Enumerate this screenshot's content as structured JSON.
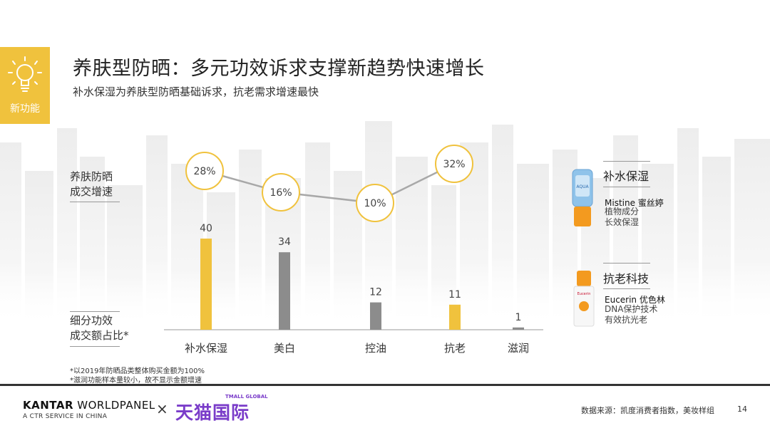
{
  "header": {
    "badge_label": "新功能",
    "title": "养肤型防晒：多元功效诉求支撑新趋势快速增长",
    "subtitle": "补水保湿为养肤型防晒基础诉求，抗老需求增速最快"
  },
  "labels": {
    "growth": "养肤防晒\n成交增速",
    "share": "细分功效\n成交额占比*"
  },
  "chart_data": {
    "type": "bar",
    "categories": [
      "补水保湿",
      "美白",
      "控油",
      "抗老",
      "滋润"
    ],
    "series": [
      {
        "values": [
          40,
          34,
          12,
          11,
          1
        ]
      }
    ],
    "growth_line": {
      "labels": [
        "28%",
        "16%",
        "10%",
        "32%"
      ],
      "values": [
        28,
        16,
        10,
        32
      ]
    },
    "bar_colors": [
      "#f0c23d",
      "#8c8c8c",
      "#8c8c8c",
      "#f0c23d",
      "#8c8c8c"
    ],
    "ylim": [
      0,
      40
    ]
  },
  "side": {
    "hydration": {
      "title": "补水保湿",
      "brand": "Mistine 蜜丝婷",
      "desc1": "植物成分",
      "desc2": "长效保湿",
      "product_text": "AQUA"
    },
    "antiaging": {
      "title": "抗老科技",
      "brand": "Eucerin 优色林",
      "desc1": "DNA保护技术",
      "desc2": "有效抗光老",
      "product_text": "Eucerin"
    }
  },
  "notes": {
    "n1": "*以2019年防晒品类整体购买金额为100%",
    "n2": "*滋润功能样本量较小，故不显示金额增速"
  },
  "footer": {
    "kantar_bold": "KANTAR",
    "kantar_rest": " WORLDPANEL",
    "kantar_sub": "A CTR SERVICE IN CHINA",
    "times": "×",
    "tmall_small": "TMALL GLOBAL",
    "tmall": "天猫国际",
    "source": "数据来源：凯度消费者指数，美妆样组",
    "page": "14"
  },
  "colors": {
    "accent": "#f0c23d",
    "bar_gray": "#8c8c8c",
    "tmall_purple": "#7a3cc9"
  }
}
